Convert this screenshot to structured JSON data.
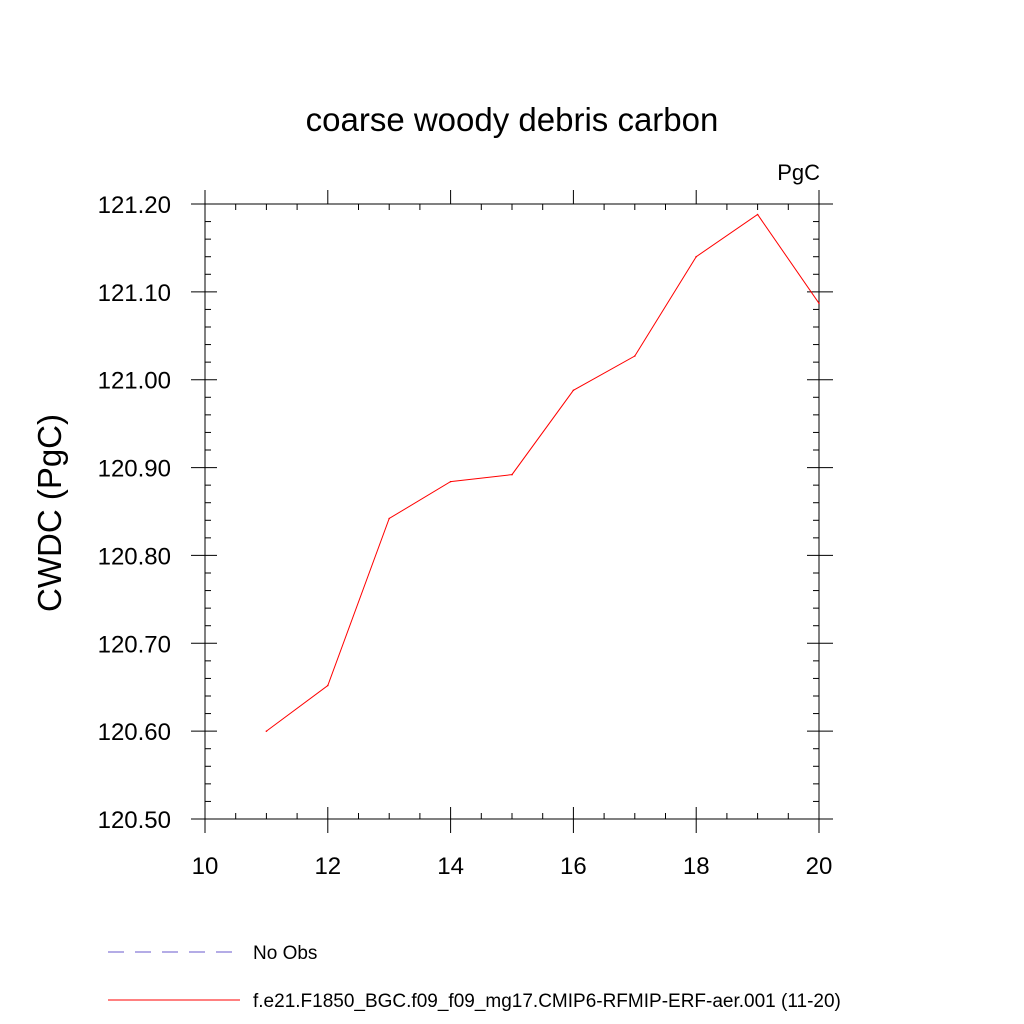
{
  "chart_data": {
    "type": "line",
    "title": "coarse woody debris carbon",
    "units_label": "PgC",
    "xlabel": "",
    "ylabel": "CWDC  (PgC)",
    "xlim": [
      10,
      20
    ],
    "ylim": [
      120.5,
      121.2
    ],
    "x_ticks": [
      10,
      12,
      14,
      16,
      18,
      20
    ],
    "y_ticks": [
      "120.50",
      "120.60",
      "120.70",
      "120.80",
      "120.90",
      "121.00",
      "121.10",
      "121.20"
    ],
    "grid": false,
    "legend_position": "bottom",
    "series": [
      {
        "name": "No Obs",
        "style": "dashed",
        "color": "#6a5acd",
        "x": [],
        "y": []
      },
      {
        "name": "f.e21.F1850_BGC.f09_f09_mg17.CMIP6-RFMIP-ERF-aer.001 (11-20)",
        "style": "solid",
        "color": "#ff0000",
        "x": [
          11,
          12,
          13,
          14,
          15,
          16,
          17,
          18,
          19,
          20
        ],
        "y": [
          120.6,
          120.652,
          120.842,
          120.884,
          120.892,
          120.988,
          121.027,
          121.14,
          121.188,
          121.087
        ]
      }
    ]
  }
}
